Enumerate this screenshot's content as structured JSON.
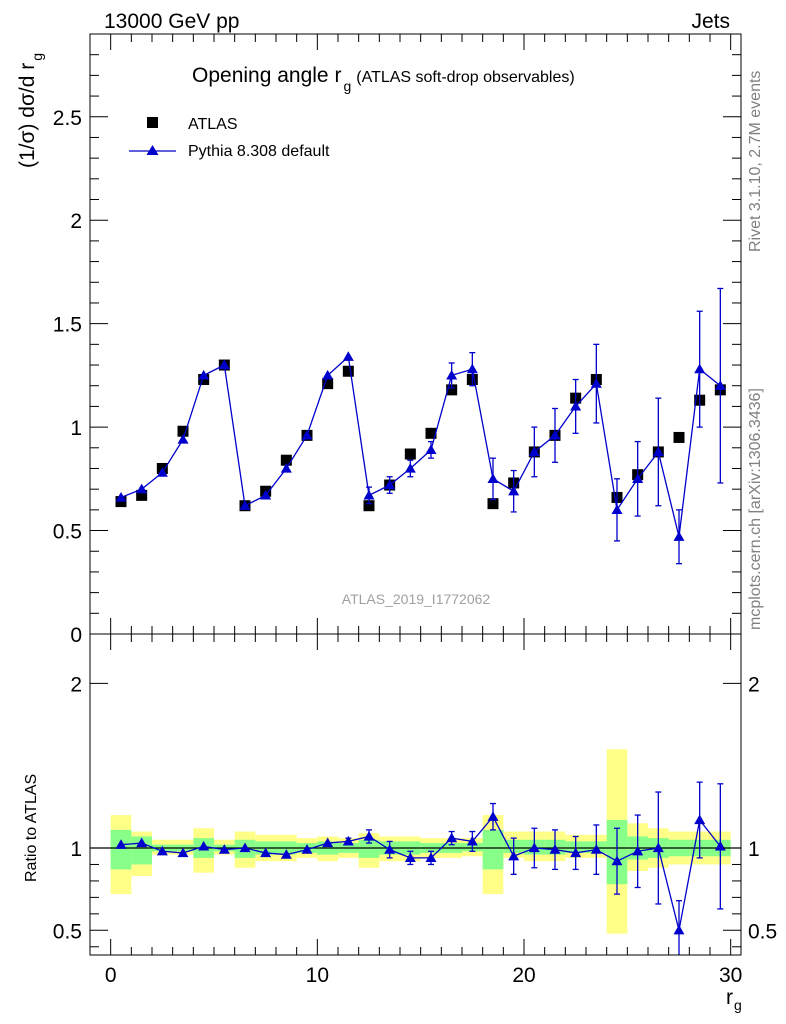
{
  "header": {
    "left": "13000 GeV pp",
    "right": "Jets"
  },
  "side_labels": {
    "rivet": "Rivet 3.1.10,  2.7M events",
    "mcplots": "mcplots.cern.ch [arXiv:1306.3436]"
  },
  "watermark": "ATLAS_2019_I1772062",
  "colors": {
    "data": "#000000",
    "mc": "#0000cc",
    "band_outer": "#ffff88",
    "band_inner": "#88ff88"
  },
  "chart_data": [
    {
      "type": "scatter",
      "panel": "main",
      "title": "Opening angle r",
      "title_sub": "g",
      "title_suffix": "(ATLAS soft-drop observables)",
      "ylabel": "(1/σ) dσ/d r",
      "ylabel_sub": "g",
      "xlim": [
        -1,
        30.5
      ],
      "ylim": [
        0,
        2.9
      ],
      "y_ticks": [
        0,
        0.5,
        1,
        1.5,
        2,
        2.5
      ],
      "y_tick_labels": [
        "0",
        "0.5",
        "1",
        "1.5",
        "2",
        "2.5"
      ],
      "legend_position": "top-left",
      "x": [
        0.5,
        1.5,
        2.5,
        3.5,
        4.5,
        5.5,
        6.5,
        7.5,
        8.5,
        9.5,
        10.5,
        11.5,
        12.5,
        13.5,
        14.5,
        15.5,
        16.5,
        17.5,
        18.5,
        19.5,
        20.5,
        21.5,
        22.5,
        23.5,
        24.5,
        25.5,
        26.5,
        27.5,
        28.5,
        29.5
      ],
      "series": [
        {
          "name": "ATLAS",
          "marker": "square",
          "values": [
            0.64,
            0.67,
            0.8,
            0.98,
            1.23,
            1.3,
            0.62,
            0.69,
            0.84,
            0.96,
            1.21,
            1.27,
            0.62,
            0.72,
            0.87,
            0.97,
            1.18,
            1.23,
            0.63,
            0.73,
            0.88,
            0.96,
            1.14,
            1.23,
            0.66,
            0.77,
            0.88,
            0.95,
            1.13,
            1.18
          ]
        },
        {
          "name": "Pythia 8.308 default",
          "marker": "triangle",
          "values": [
            0.66,
            0.7,
            0.78,
            0.94,
            1.25,
            1.3,
            0.62,
            0.67,
            0.8,
            0.96,
            1.25,
            1.34,
            0.67,
            0.72,
            0.8,
            0.89,
            1.25,
            1.28,
            0.75,
            0.69,
            0.88,
            0.96,
            1.1,
            1.21,
            0.6,
            0.75,
            0.88,
            0.47,
            1.28,
            1.2
          ],
          "errors": [
            0.01,
            0.01,
            0.01,
            0.01,
            0.01,
            0.02,
            0.01,
            0.01,
            0.01,
            0.02,
            0.02,
            0.03,
            0.04,
            0.04,
            0.04,
            0.04,
            0.06,
            0.08,
            0.1,
            0.1,
            0.12,
            0.13,
            0.13,
            0.19,
            0.15,
            0.18,
            0.26,
            0.13,
            0.28,
            0.47
          ]
        }
      ]
    },
    {
      "type": "scatter",
      "panel": "ratio",
      "ylabel": "Ratio to ATLAS",
      "xlabel": "r",
      "xlabel_sub": "g",
      "xlim": [
        -1,
        30.5
      ],
      "ylim": [
        0.35,
        2.3
      ],
      "x_ticks": [
        0,
        10,
        20,
        30
      ],
      "x_tick_labels": [
        "0",
        "10",
        "20",
        "30"
      ],
      "y_ticks": [
        0.5,
        1,
        2
      ],
      "y_tick_labels": [
        "0.5",
        "1",
        "2"
      ],
      "reference": 1,
      "bin_edges": [
        0,
        1,
        2,
        3,
        4,
        5,
        6,
        7,
        8,
        9,
        10,
        11,
        12,
        13,
        14,
        15,
        16,
        17,
        18,
        19,
        20,
        21,
        22,
        23,
        24,
        25,
        26,
        27,
        28,
        29,
        30
      ],
      "band_outer": [
        [
          0.72,
          1.2
        ],
        [
          0.83,
          1.1
        ],
        [
          0.96,
          1.05
        ],
        [
          0.96,
          1.05
        ],
        [
          0.85,
          1.12
        ],
        [
          0.96,
          1.05
        ],
        [
          0.88,
          1.1
        ],
        [
          0.92,
          1.08
        ],
        [
          0.92,
          1.08
        ],
        [
          0.94,
          1.06
        ],
        [
          0.92,
          1.07
        ],
        [
          0.94,
          1.06
        ],
        [
          0.88,
          1.09
        ],
        [
          0.92,
          1.07
        ],
        [
          0.92,
          1.07
        ],
        [
          0.94,
          1.06
        ],
        [
          0.94,
          1.06
        ],
        [
          0.95,
          1.06
        ],
        [
          0.72,
          1.2
        ],
        [
          0.94,
          1.1
        ],
        [
          0.92,
          1.1
        ],
        [
          0.92,
          1.1
        ],
        [
          0.94,
          1.08
        ],
        [
          0.94,
          1.08
        ],
        [
          0.48,
          1.6
        ],
        [
          0.86,
          1.15
        ],
        [
          0.88,
          1.12
        ],
        [
          0.9,
          1.1
        ],
        [
          0.9,
          1.1
        ],
        [
          0.9,
          1.1
        ]
      ],
      "band_inner": [
        [
          0.87,
          1.11
        ],
        [
          0.9,
          1.07
        ],
        [
          0.98,
          1.02
        ],
        [
          0.98,
          1.02
        ],
        [
          0.94,
          1.06
        ],
        [
          0.98,
          1.02
        ],
        [
          0.94,
          1.05
        ],
        [
          0.96,
          1.04
        ],
        [
          0.96,
          1.04
        ],
        [
          0.97,
          1.03
        ],
        [
          0.96,
          1.04
        ],
        [
          0.97,
          1.03
        ],
        [
          0.94,
          1.05
        ],
        [
          0.96,
          1.04
        ],
        [
          0.96,
          1.04
        ],
        [
          0.97,
          1.03
        ],
        [
          0.97,
          1.03
        ],
        [
          0.98,
          1.03
        ],
        [
          0.87,
          1.11
        ],
        [
          0.97,
          1.05
        ],
        [
          0.96,
          1.05
        ],
        [
          0.96,
          1.05
        ],
        [
          0.97,
          1.04
        ],
        [
          0.97,
          1.04
        ],
        [
          0.78,
          1.17
        ],
        [
          0.93,
          1.07
        ],
        [
          0.94,
          1.06
        ],
        [
          0.95,
          1.05
        ],
        [
          0.95,
          1.05
        ],
        [
          0.95,
          1.05
        ]
      ],
      "series": [
        {
          "name": "Pythia 8.308 default",
          "marker": "triangle",
          "values": [
            1.02,
            1.03,
            0.98,
            0.97,
            1.01,
            0.99,
            1.0,
            0.97,
            0.96,
            0.99,
            1.03,
            1.04,
            1.07,
            0.99,
            0.94,
            0.94,
            1.06,
            1.04,
            1.19,
            0.95,
            1.0,
            0.99,
            0.97,
            0.99,
            0.92,
            0.98,
            1.0,
            0.5,
            1.17,
            1.01
          ],
          "errors": [
            0.01,
            0.01,
            0.01,
            0.01,
            0.01,
            0.01,
            0.01,
            0.01,
            0.01,
            0.01,
            0.01,
            0.02,
            0.04,
            0.05,
            0.04,
            0.04,
            0.04,
            0.06,
            0.08,
            0.11,
            0.12,
            0.12,
            0.1,
            0.15,
            0.2,
            0.22,
            0.34,
            0.18,
            0.23,
            0.38
          ]
        }
      ]
    }
  ]
}
